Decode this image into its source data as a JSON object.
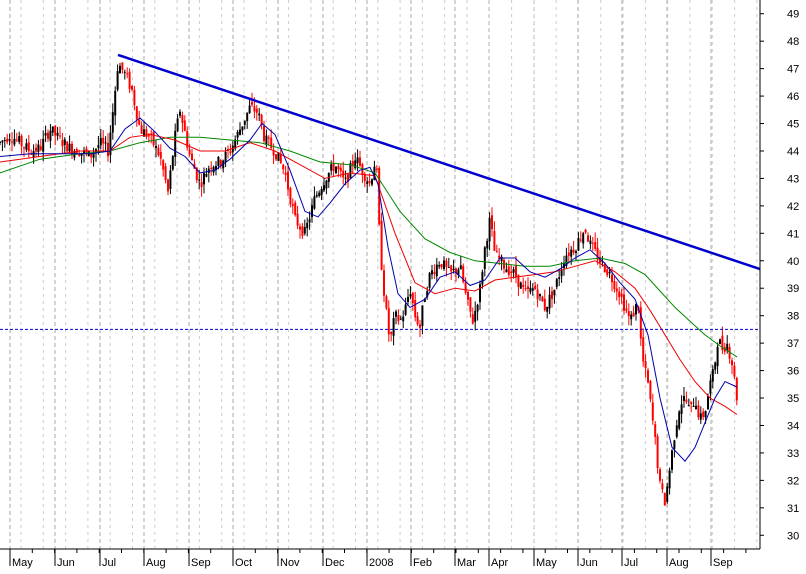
{
  "chart_data": {
    "type": "candlestick",
    "title": "",
    "xlabel": "",
    "ylabel": "",
    "ylim": [
      29.5,
      49.5
    ],
    "y_ticks": [
      30,
      31,
      32,
      33,
      34,
      35,
      36,
      37,
      38,
      39,
      40,
      41,
      42,
      43,
      44,
      45,
      46,
      47,
      48,
      49
    ],
    "x_ticks": [
      "May",
      "Jun",
      "Jul",
      "Aug",
      "Sep",
      "Oct",
      "Nov",
      "Dec",
      "2008",
      "Feb",
      "Mar",
      "Apr",
      "May",
      "Jun",
      "Jul",
      "Aug",
      "Sep"
    ],
    "grid": true,
    "colors": {
      "up": "#000000",
      "down": "#ff0000",
      "ma_short": "#0000aa",
      "ma_mid": "#ee0000",
      "ma_long": "#008800",
      "trendline": "#0000cc",
      "support": "#0000cc",
      "grid": "#aaaaaa"
    },
    "price_path": [
      [
        0,
        44.3
      ],
      [
        10,
        44.6
      ],
      [
        20,
        44.3
      ],
      [
        30,
        44.0
      ],
      [
        40,
        44.1
      ],
      [
        50,
        44.8
      ],
      [
        60,
        44.4
      ],
      [
        70,
        44.1
      ],
      [
        80,
        44.0
      ],
      [
        90,
        43.8
      ],
      [
        100,
        44.3
      ],
      [
        108,
        44.0
      ],
      [
        113,
        45.5
      ],
      [
        118,
        47.2
      ],
      [
        125,
        46.8
      ],
      [
        132,
        46.2
      ],
      [
        140,
        44.8
      ],
      [
        150,
        44.5
      ],
      [
        160,
        43.8
      ],
      [
        168,
        42.5
      ],
      [
        175,
        44.5
      ],
      [
        180,
        45.5
      ],
      [
        190,
        43.8
      ],
      [
        200,
        42.8
      ],
      [
        210,
        43.5
      ],
      [
        220,
        43.6
      ],
      [
        230,
        44.0
      ],
      [
        240,
        44.8
      ],
      [
        250,
        45.6
      ],
      [
        258,
        45.4
      ],
      [
        265,
        44.4
      ],
      [
        275,
        44.0
      ],
      [
        285,
        43.2
      ],
      [
        295,
        41.5
      ],
      [
        305,
        41.0
      ],
      [
        315,
        42.3
      ],
      [
        325,
        43.0
      ],
      [
        335,
        43.5
      ],
      [
        345,
        42.8
      ],
      [
        355,
        43.8
      ],
      [
        362,
        43.3
      ],
      [
        370,
        42.8
      ],
      [
        376,
        43.8
      ],
      [
        380,
        40.5
      ],
      [
        385,
        38.5
      ],
      [
        390,
        37.0
      ],
      [
        395,
        38.0
      ],
      [
        400,
        37.8
      ],
      [
        405,
        38.2
      ],
      [
        410,
        39.0
      ],
      [
        415,
        38.0
      ],
      [
        420,
        37.6
      ],
      [
        425,
        38.8
      ],
      [
        430,
        39.5
      ],
      [
        440,
        40.0
      ],
      [
        450,
        39.5
      ],
      [
        460,
        39.8
      ],
      [
        467,
        38.5
      ],
      [
        473,
        37.8
      ],
      [
        480,
        39.0
      ],
      [
        485,
        40.5
      ],
      [
        490,
        41.5
      ],
      [
        495,
        40.2
      ],
      [
        505,
        39.8
      ],
      [
        515,
        39.5
      ],
      [
        525,
        38.8
      ],
      [
        535,
        39.0
      ],
      [
        545,
        38.3
      ],
      [
        555,
        39.0
      ],
      [
        565,
        40.2
      ],
      [
        575,
        40.5
      ],
      [
        585,
        41.2
      ],
      [
        590,
        40.6
      ],
      [
        600,
        40.0
      ],
      [
        610,
        39.5
      ],
      [
        620,
        38.8
      ],
      [
        630,
        37.8
      ],
      [
        638,
        38.5
      ],
      [
        642,
        36.5
      ],
      [
        648,
        35.5
      ],
      [
        655,
        33.5
      ],
      [
        660,
        31.8
      ],
      [
        665,
        31.2
      ],
      [
        670,
        32.5
      ],
      [
        675,
        33.8
      ],
      [
        680,
        34.8
      ],
      [
        685,
        35.0
      ],
      [
        690,
        34.5
      ],
      [
        695,
        35.0
      ],
      [
        700,
        34.2
      ],
      [
        705,
        34.5
      ],
      [
        710,
        35.5
      ],
      [
        714,
        36.0
      ],
      [
        718,
        37.2
      ],
      [
        722,
        36.8
      ],
      [
        727,
        37.0
      ],
      [
        732,
        36.3
      ],
      [
        737,
        35.0
      ]
    ],
    "ma_short": [
      [
        0,
        43.8
      ],
      [
        30,
        43.9
      ],
      [
        60,
        43.9
      ],
      [
        90,
        43.9
      ],
      [
        110,
        44.0
      ],
      [
        125,
        44.8
      ],
      [
        140,
        45.2
      ],
      [
        155,
        44.7
      ],
      [
        170,
        44.1
      ],
      [
        185,
        43.8
      ],
      [
        200,
        43.2
      ],
      [
        215,
        43.3
      ],
      [
        230,
        43.7
      ],
      [
        250,
        44.4
      ],
      [
        262,
        45.0
      ],
      [
        275,
        44.6
      ],
      [
        290,
        43.3
      ],
      [
        305,
        41.8
      ],
      [
        318,
        41.6
      ],
      [
        330,
        42.1
      ],
      [
        345,
        42.8
      ],
      [
        360,
        43.3
      ],
      [
        370,
        43.4
      ],
      [
        378,
        42.8
      ],
      [
        388,
        40.5
      ],
      [
        398,
        38.8
      ],
      [
        410,
        38.3
      ],
      [
        425,
        38.6
      ],
      [
        440,
        39.4
      ],
      [
        455,
        39.6
      ],
      [
        470,
        39.1
      ],
      [
        485,
        39.3
      ],
      [
        500,
        40.1
      ],
      [
        515,
        40.1
      ],
      [
        530,
        39.6
      ],
      [
        545,
        39.4
      ],
      [
        560,
        39.7
      ],
      [
        575,
        40.1
      ],
      [
        590,
        40.4
      ],
      [
        605,
        39.9
      ],
      [
        620,
        39.2
      ],
      [
        635,
        38.6
      ],
      [
        648,
        37.3
      ],
      [
        660,
        35.0
      ],
      [
        672,
        33.2
      ],
      [
        685,
        32.7
      ],
      [
        695,
        33.2
      ],
      [
        705,
        34.1
      ],
      [
        715,
        35.0
      ],
      [
        725,
        35.6
      ],
      [
        737,
        35.4
      ]
    ],
    "ma_mid": [
      [
        0,
        43.6
      ],
      [
        40,
        43.8
      ],
      [
        80,
        44.0
      ],
      [
        110,
        44.0
      ],
      [
        130,
        44.5
      ],
      [
        150,
        44.6
      ],
      [
        175,
        44.4
      ],
      [
        200,
        44.0
      ],
      [
        225,
        44.0
      ],
      [
        250,
        44.3
      ],
      [
        275,
        44.0
      ],
      [
        300,
        43.5
      ],
      [
        325,
        43.0
      ],
      [
        350,
        43.2
      ],
      [
        375,
        43.1
      ],
      [
        395,
        41.0
      ],
      [
        415,
        39.2
      ],
      [
        435,
        38.8
      ],
      [
        455,
        39.0
      ],
      [
        475,
        38.9
      ],
      [
        495,
        39.3
      ],
      [
        515,
        39.4
      ],
      [
        535,
        39.5
      ],
      [
        555,
        39.6
      ],
      [
        575,
        39.8
      ],
      [
        595,
        40.0
      ],
      [
        615,
        39.6
      ],
      [
        635,
        39.0
      ],
      [
        650,
        38.2
      ],
      [
        665,
        37.3
      ],
      [
        680,
        36.4
      ],
      [
        695,
        35.6
      ],
      [
        710,
        35.0
      ],
      [
        725,
        34.7
      ],
      [
        737,
        34.4
      ]
    ],
    "ma_long": [
      [
        0,
        43.2
      ],
      [
        40,
        43.7
      ],
      [
        80,
        43.9
      ],
      [
        110,
        44.0
      ],
      [
        140,
        44.3
      ],
      [
        170,
        44.5
      ],
      [
        200,
        44.5
      ],
      [
        230,
        44.4
      ],
      [
        260,
        44.3
      ],
      [
        290,
        44.0
      ],
      [
        320,
        43.6
      ],
      [
        350,
        43.5
      ],
      [
        375,
        43.2
      ],
      [
        400,
        41.8
      ],
      [
        425,
        40.8
      ],
      [
        450,
        40.3
      ],
      [
        475,
        40.0
      ],
      [
        500,
        39.9
      ],
      [
        525,
        39.8
      ],
      [
        550,
        39.8
      ],
      [
        575,
        40.0
      ],
      [
        600,
        40.1
      ],
      [
        625,
        39.9
      ],
      [
        645,
        39.5
      ],
      [
        660,
        38.9
      ],
      [
        675,
        38.3
      ],
      [
        690,
        37.8
      ],
      [
        705,
        37.3
      ],
      [
        720,
        36.9
      ],
      [
        737,
        36.5
      ]
    ],
    "trendline": {
      "from": [
        118,
        47.5
      ],
      "to": [
        760,
        39.7
      ]
    },
    "support_level": 37.5,
    "volatility": 0.45,
    "seed": 7
  }
}
